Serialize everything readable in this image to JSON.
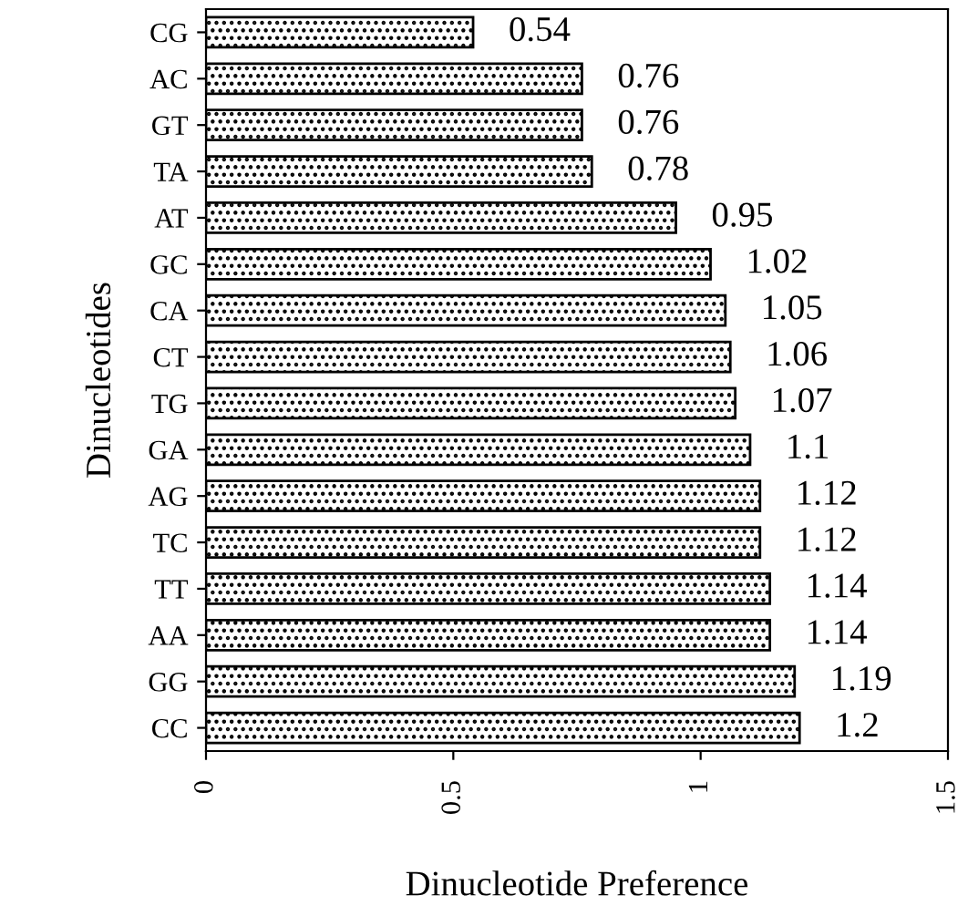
{
  "chart_data": {
    "type": "bar",
    "orientation": "horizontal",
    "xlabel": "Dinucleotide Preference",
    "ylabel": "Dinucleotides",
    "categories": [
      "CG",
      "AC",
      "GT",
      "TA",
      "AT",
      "GC",
      "CA",
      "CT",
      "TG",
      "GA",
      "AG",
      "TC",
      "TT",
      "AA",
      "GG",
      "CC"
    ],
    "values": [
      0.54,
      0.76,
      0.76,
      0.78,
      0.95,
      1.02,
      1.05,
      1.06,
      1.07,
      1.1,
      1.12,
      1.12,
      1.14,
      1.14,
      1.19,
      1.2
    ],
    "color": "#000000",
    "xlim": [
      0,
      1.5
    ],
    "xticks": [
      0,
      0.5,
      1,
      1.5
    ],
    "data_labels": true,
    "grid": false,
    "legend": false
  }
}
